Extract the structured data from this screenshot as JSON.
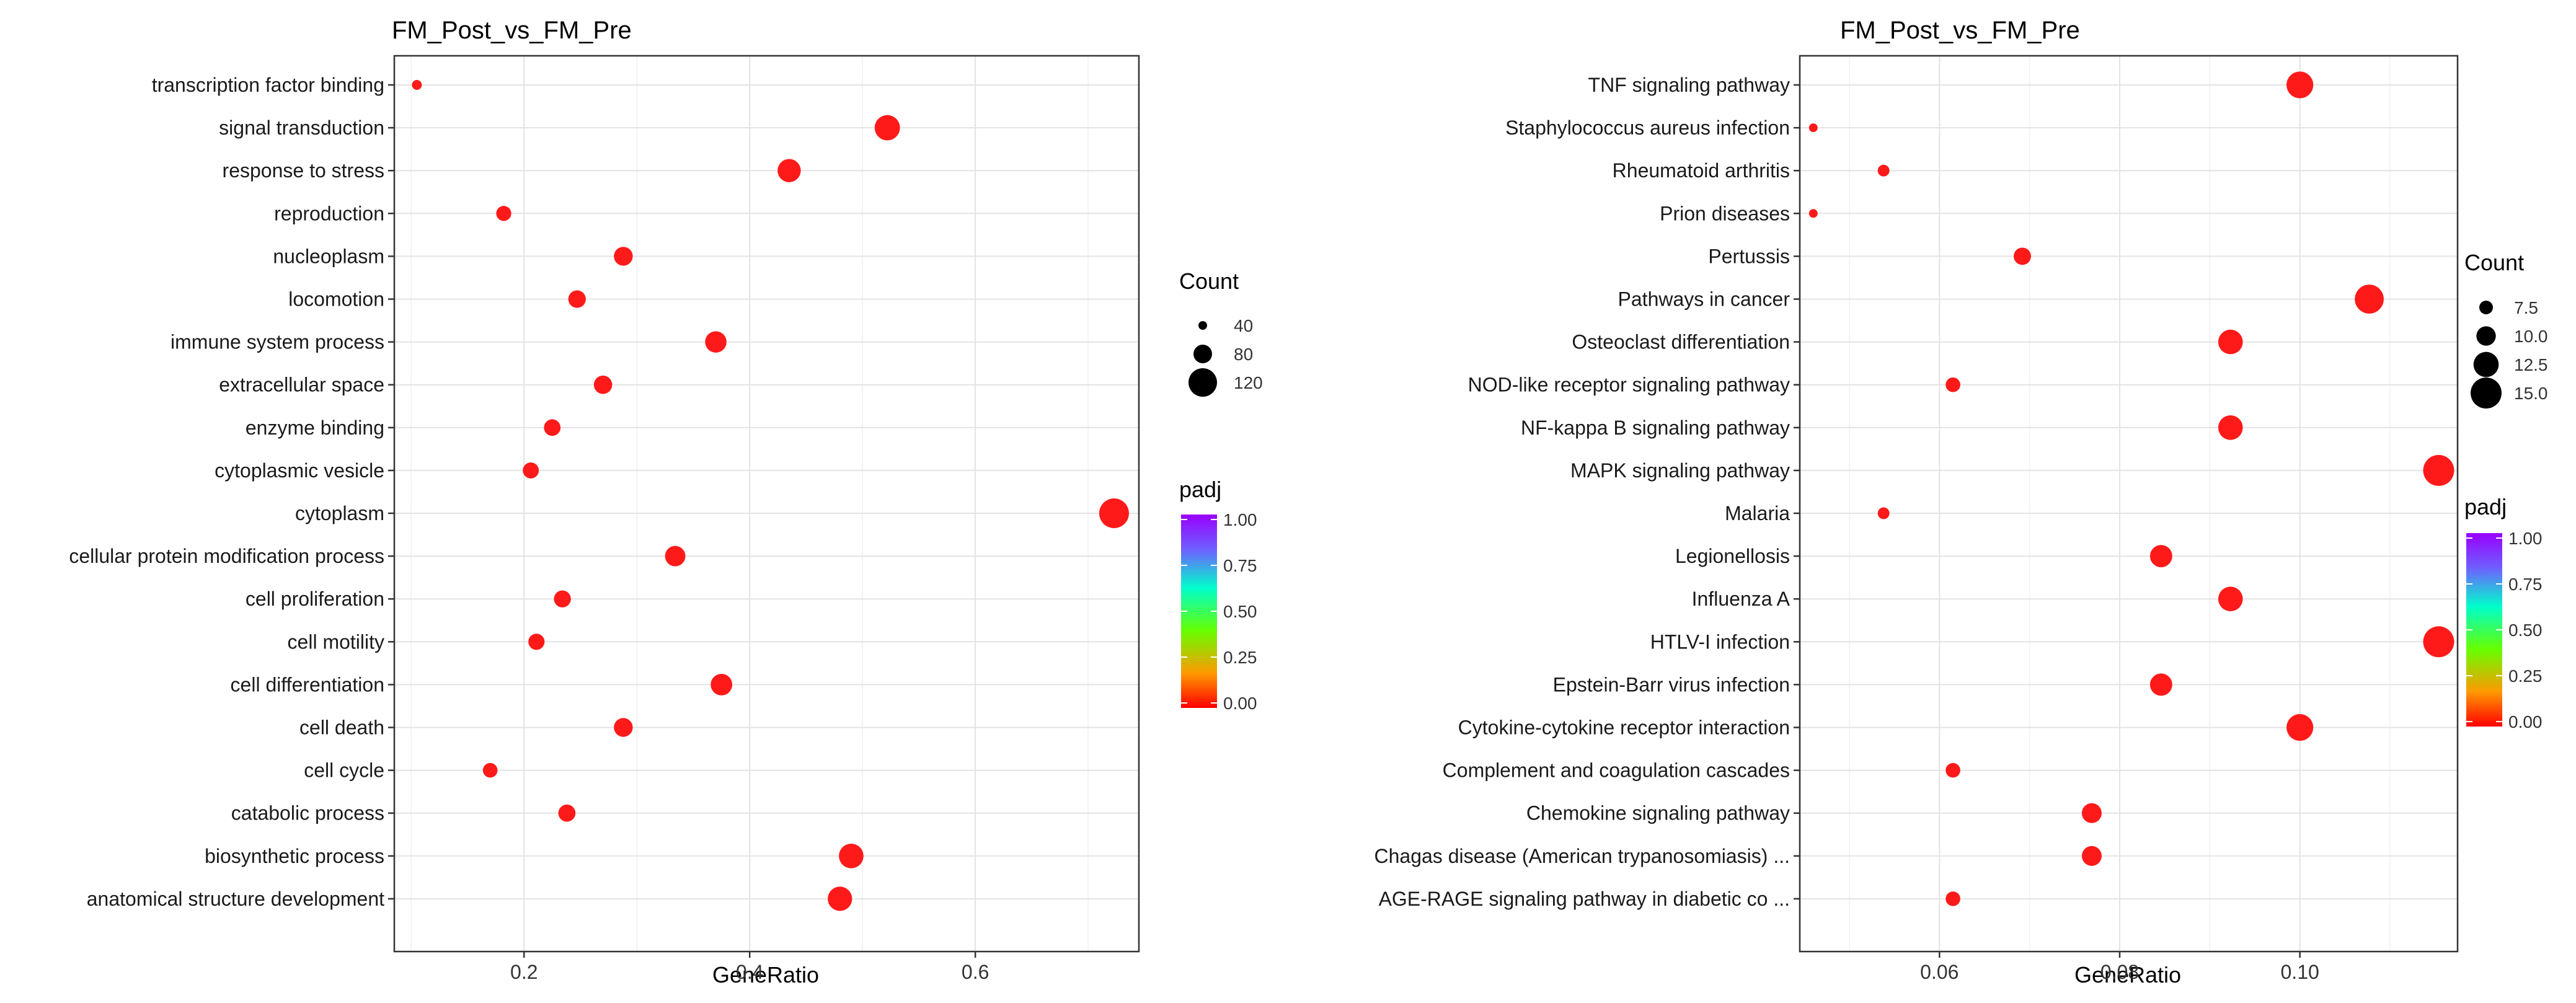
{
  "chart_data": [
    {
      "type": "scatter",
      "title": "FM_Post_vs_FM_Pre",
      "xlabel": "GeneRatio",
      "ylabel": "",
      "xlim": [
        0.085,
        0.745
      ],
      "x_ticks": [
        0.2,
        0.4,
        0.6
      ],
      "x_tick_labels": [
        "0.2",
        "0.4",
        "0.6"
      ],
      "grid": true,
      "categories": [
        "transcription factor binding",
        "signal transduction",
        "response to stress",
        "reproduction",
        "nucleoplasm",
        "locomotion",
        "immune system process",
        "extracellular space",
        "enzyme binding",
        "cytoplasmic vesicle",
        "cytoplasm",
        "cellular protein modification process",
        "cell proliferation",
        "cell motility",
        "cell differentiation",
        "cell death",
        "cell cycle",
        "catabolic process",
        "biosynthetic process",
        "anatomical structure development"
      ],
      "gene_ratio": [
        0.105,
        0.522,
        0.435,
        0.182,
        0.288,
        0.247,
        0.37,
        0.27,
        0.225,
        0.206,
        0.723,
        0.334,
        0.234,
        0.211,
        0.375,
        0.288,
        0.17,
        0.238,
        0.49,
        0.48
      ],
      "count": [
        16,
        105,
        88,
        37,
        58,
        50,
        75,
        55,
        45,
        42,
        145,
        68,
        47,
        43,
        76,
        58,
        35,
        48,
        99,
        97
      ],
      "padj": [
        0,
        0,
        0,
        0,
        0,
        0,
        0,
        0,
        0,
        0,
        0,
        0,
        0,
        0,
        0,
        0,
        0,
        0,
        0,
        0
      ],
      "legend_size": {
        "title": "Count",
        "values": [
          40,
          80,
          120
        ],
        "labels": [
          "40",
          "80",
          "120"
        ],
        "range": [
          16,
          145
        ]
      },
      "legend_color": {
        "title": "padj",
        "ticks": [
          "1.00",
          "0.75",
          "0.50",
          "0.25",
          "0.00"
        ]
      },
      "legend_position": "right"
    },
    {
      "type": "scatter",
      "title": "FM_Post_vs_FM_Pre",
      "xlabel": "GeneRatio",
      "ylabel": "",
      "xlim": [
        0.0445,
        0.1175
      ],
      "x_ticks": [
        0.06,
        0.08,
        0.1
      ],
      "x_tick_labels": [
        "0.06",
        "0.08",
        "0.10"
      ],
      "grid": true,
      "categories": [
        "TNF signaling pathway",
        "Staphylococcus aureus infection",
        "Rheumatoid arthritis",
        "Prion diseases",
        "Pertussis",
        "Pathways in cancer",
        "Osteoclast differentiation",
        "NOD-like receptor signaling pathway",
        "NF-kappa B signaling pathway",
        "MAPK signaling pathway",
        "Malaria",
        "Legionellosis",
        "Influenza A",
        "HTLV-I infection",
        "Epstein-Barr virus infection",
        "Cytokine-cytokine receptor interaction",
        "Complement and coagulation cascades",
        "Chemokine signaling pathway",
        "Chagas disease (American trypanosomiasis) ...",
        "AGE-RAGE signaling pathway in diabetic co ..."
      ],
      "gene_ratio": [
        0.1,
        0.046,
        0.0538,
        0.046,
        0.0692,
        0.1077,
        0.0923,
        0.0615,
        0.0923,
        0.1154,
        0.0538,
        0.0846,
        0.0923,
        0.1154,
        0.0846,
        0.1,
        0.0615,
        0.0769,
        0.0769,
        0.0615
      ],
      "count": [
        13,
        6,
        7,
        6,
        9,
        14,
        12,
        8,
        12,
        15,
        7,
        11,
        12,
        15,
        11,
        13,
        8,
        10,
        10,
        8
      ],
      "padj": [
        0,
        0,
        0,
        0,
        0,
        0,
        0,
        0,
        0,
        0,
        0,
        0,
        0,
        0,
        0,
        0,
        0,
        0,
        0,
        0
      ],
      "legend_size": {
        "title": "Count",
        "values": [
          7.5,
          10,
          12.5,
          15
        ],
        "labels": [
          "7.5",
          "10.0",
          "12.5",
          "15.0"
        ],
        "range": [
          6,
          15
        ]
      },
      "legend_color": {
        "title": "padj",
        "ticks": [
          "1.00",
          "0.75",
          "0.50",
          "0.25",
          "0.00"
        ]
      },
      "legend_position": "right"
    }
  ],
  "colors": {
    "point": "#ff1a1a",
    "gradient_stops": [
      "#ff0000",
      "#ff9900",
      "#66ff00",
      "#00ffcc",
      "#6f5fff",
      "#9900ff"
    ]
  }
}
